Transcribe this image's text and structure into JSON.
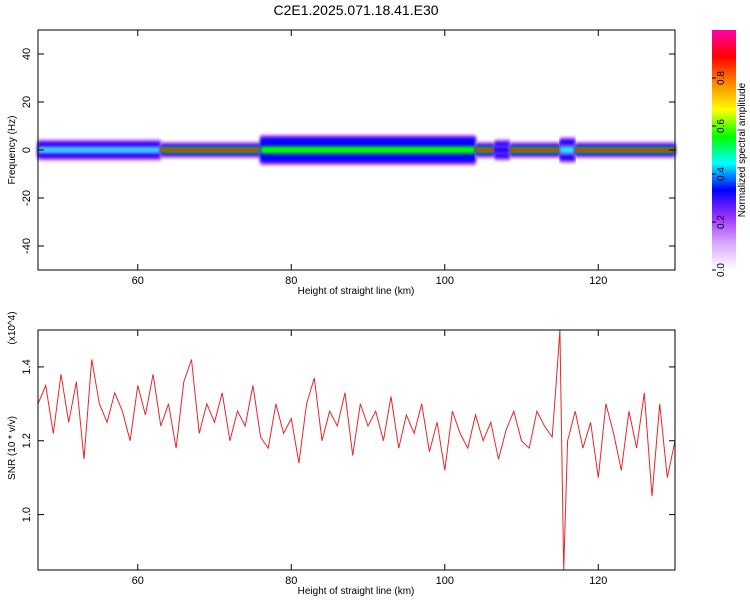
{
  "title": "C2E1.2025.071.18.41.E30",
  "chart_data": [
    {
      "type": "heatmap",
      "xlabel": "Height of straight line (km)",
      "ylabel": "Frequency (Hz)",
      "xlim": [
        47,
        130
      ],
      "ylim": [
        -50,
        50
      ],
      "xticks": [
        60,
        80,
        100,
        120
      ],
      "yticks": [
        40,
        20,
        0,
        -20,
        -40
      ],
      "colorbar": {
        "label": "Normalized spectral amplitude",
        "range": [
          0,
          1
        ],
        "ticks": [
          "0.0",
          "0.2",
          "0.4",
          "0.6",
          "0.8"
        ],
        "colors": [
          "#ffffff",
          "#d9a9ff",
          "#9b30ff",
          "#0000ff",
          "#00ffff",
          "#00ff00",
          "#ffff00",
          "#ff8800",
          "#ff0000",
          "#ff00aa"
        ]
      },
      "segments": [
        {
          "x0": 47,
          "x1": 63,
          "amp": 0.45,
          "half_width": 3
        },
        {
          "x0": 63,
          "x1": 76,
          "amp": 0.85,
          "half_width": 2
        },
        {
          "x0": 76,
          "x1": 104,
          "amp": 0.5,
          "half_width": 5
        },
        {
          "x0": 104,
          "x1": 106.5,
          "amp": 0.9,
          "half_width": 2
        },
        {
          "x0": 106.5,
          "x1": 108.5,
          "amp": 0.35,
          "half_width": 3
        },
        {
          "x0": 108.5,
          "x1": 115,
          "amp": 0.85,
          "half_width": 2
        },
        {
          "x0": 115,
          "x1": 117,
          "amp": 0.4,
          "half_width": 4
        },
        {
          "x0": 117,
          "x1": 130,
          "amp": 0.9,
          "half_width": 2
        }
      ]
    },
    {
      "type": "line",
      "xlabel": "Height of straight line (km)",
      "ylabel": "SNR (10 * v/v)",
      "y_multiplier": "(x10^4)",
      "xlim": [
        47,
        130
      ],
      "ylim": [
        0.85,
        1.5
      ],
      "xticks": [
        60,
        80,
        100,
        120
      ],
      "yticks": [
        1.0,
        1.2,
        1.4
      ],
      "series": [
        {
          "color": "#e8262a",
          "x": [
            47,
            48,
            49,
            50,
            51,
            52,
            53,
            54,
            55,
            56,
            57,
            58,
            59,
            60,
            61,
            62,
            63,
            64,
            65,
            66,
            67,
            68,
            69,
            70,
            71,
            72,
            73,
            74,
            75,
            76,
            77,
            78,
            79,
            80,
            81,
            82,
            83,
            84,
            85,
            86,
            87,
            88,
            89,
            90,
            91,
            92,
            93,
            94,
            95,
            96,
            97,
            98,
            99,
            100,
            101,
            102,
            103,
            104,
            105,
            106,
            107,
            108,
            109,
            110,
            111,
            112,
            113,
            114,
            114.5,
            115,
            115.5,
            116,
            117,
            118,
            119,
            120,
            121,
            122,
            123,
            124,
            125,
            126,
            127,
            128,
            129,
            130
          ],
          "y": [
            1.3,
            1.35,
            1.22,
            1.38,
            1.25,
            1.36,
            1.15,
            1.42,
            1.3,
            1.25,
            1.33,
            1.28,
            1.2,
            1.35,
            1.27,
            1.38,
            1.24,
            1.3,
            1.18,
            1.36,
            1.42,
            1.22,
            1.3,
            1.25,
            1.33,
            1.2,
            1.28,
            1.24,
            1.35,
            1.21,
            1.18,
            1.3,
            1.22,
            1.26,
            1.14,
            1.3,
            1.37,
            1.2,
            1.28,
            1.24,
            1.33,
            1.16,
            1.3,
            1.24,
            1.28,
            1.2,
            1.32,
            1.18,
            1.27,
            1.22,
            1.3,
            1.17,
            1.25,
            1.12,
            1.28,
            1.22,
            1.18,
            1.27,
            1.2,
            1.25,
            1.15,
            1.23,
            1.28,
            1.2,
            1.18,
            1.28,
            1.24,
            1.21,
            1.35,
            1.5,
            0.85,
            1.2,
            1.28,
            1.18,
            1.25,
            1.1,
            1.3,
            1.22,
            1.12,
            1.28,
            1.18,
            1.33,
            1.05,
            1.3,
            1.1,
            1.2
          ]
        }
      ]
    }
  ]
}
